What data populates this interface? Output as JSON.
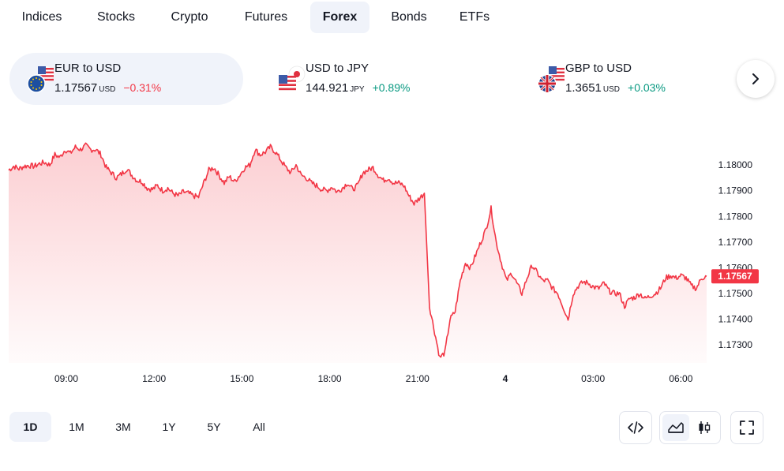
{
  "tabs": [
    {
      "label": "Indices",
      "active": false
    },
    {
      "label": "Stocks",
      "active": false
    },
    {
      "label": "Crypto",
      "active": false
    },
    {
      "label": "Futures",
      "active": false
    },
    {
      "label": "Forex",
      "active": true
    },
    {
      "label": "Bonds",
      "active": false
    },
    {
      "label": "ETFs",
      "active": false
    }
  ],
  "pairs": [
    {
      "name": "EUR to USD",
      "price": "1.17567",
      "unit": "USD",
      "change": "−0.31%",
      "direction": "down",
      "active": true,
      "icon": "eu-us-flags-icon"
    },
    {
      "name": "USD to JPY",
      "price": "144.921",
      "unit": "JPY",
      "change": "+0.89%",
      "direction": "up",
      "active": false,
      "icon": "us-jp-flags-icon"
    },
    {
      "name": "GBP to USD",
      "price": "1.3651",
      "unit": "USD",
      "change": "+0.03%",
      "direction": "up",
      "active": false,
      "icon": "gb-us-flags-icon"
    }
  ],
  "next_icon": "chevron-right-icon",
  "chart_data": {
    "type": "area",
    "series_color": "#f23645",
    "fill_color": "#fcd4d6",
    "y_ticks": [
      "1.18000",
      "1.17900",
      "1.17800",
      "1.17700",
      "1.17600",
      "1.17500",
      "1.17400",
      "1.17300"
    ],
    "ylim": [
      1.1723,
      1.1812
    ],
    "x_ticks": [
      {
        "label": "09:00",
        "bold": false
      },
      {
        "label": "12:00",
        "bold": false
      },
      {
        "label": "15:00",
        "bold": false
      },
      {
        "label": "18:00",
        "bold": false
      },
      {
        "label": "21:00",
        "bold": false
      },
      {
        "label": "4",
        "bold": true
      },
      {
        "label": "03:00",
        "bold": false
      },
      {
        "label": "06:00",
        "bold": false
      }
    ],
    "current_value": "1.17567",
    "points": [
      [
        0,
        1.1798
      ],
      [
        1,
        1.17995
      ],
      [
        2,
        1.17985
      ],
      [
        3,
        1.17995
      ],
      [
        4,
        1.17998
      ],
      [
        5,
        1.17995
      ],
      [
        6,
        1.18005
      ],
      [
        7,
        1.1801
      ],
      [
        8,
        1.18
      ],
      [
        9,
        1.1804
      ],
      [
        10,
        1.1803
      ],
      [
        11,
        1.1806
      ],
      [
        12,
        1.18045
      ],
      [
        13,
        1.1807
      ],
      [
        14,
        1.1806
      ],
      [
        15,
        1.18075
      ],
      [
        16,
        1.1806
      ],
      [
        17,
        1.1806
      ],
      [
        18,
        1.1804
      ],
      [
        19,
        1.1799
      ],
      [
        20,
        1.1797
      ],
      [
        21,
        1.1795
      ],
      [
        22,
        1.17965
      ],
      [
        23,
        1.17985
      ],
      [
        24,
        1.1796
      ],
      [
        25,
        1.1794
      ],
      [
        26,
        1.17935
      ],
      [
        27,
        1.1791
      ],
      [
        28,
        1.17905
      ],
      [
        29,
        1.1792
      ],
      [
        30,
        1.179
      ],
      [
        31,
        1.1791
      ],
      [
        32,
        1.1789
      ],
      [
        33,
        1.1788
      ],
      [
        34,
        1.17895
      ],
      [
        35,
        1.1789
      ],
      [
        36,
        1.1788
      ],
      [
        37,
        1.17875
      ],
      [
        38,
        1.1793
      ],
      [
        39,
        1.1798
      ],
      [
        40,
        1.1799
      ],
      [
        41,
        1.1796
      ],
      [
        42,
        1.1793
      ],
      [
        43,
        1.17955
      ],
      [
        44,
        1.17935
      ],
      [
        45,
        1.1796
      ],
      [
        46,
        1.1799
      ],
      [
        47,
        1.18
      ],
      [
        48,
        1.1806
      ],
      [
        49,
        1.1804
      ],
      [
        50,
        1.1805
      ],
      [
        51,
        1.1807
      ],
      [
        52,
        1.1805
      ],
      [
        53,
        1.1802
      ],
      [
        54,
        1.1799
      ],
      [
        55,
        1.1797
      ],
      [
        56,
        1.18
      ],
      [
        57,
        1.1796
      ],
      [
        58,
        1.1795
      ],
      [
        59,
        1.1793
      ],
      [
        60,
        1.1792
      ],
      [
        61,
        1.17905
      ],
      [
        62,
        1.179
      ],
      [
        63,
        1.17915
      ],
      [
        64,
        1.17895
      ],
      [
        65,
        1.1791
      ],
      [
        66,
        1.1793
      ],
      [
        67,
        1.17905
      ],
      [
        68,
        1.1792
      ],
      [
        69,
        1.1797
      ],
      [
        70,
        1.1798
      ],
      [
        71,
        1.1799
      ],
      [
        72,
        1.1796
      ],
      [
        73,
        1.1794
      ],
      [
        74,
        1.1795
      ],
      [
        75,
        1.1793
      ],
      [
        76,
        1.1793
      ],
      [
        77,
        1.1792
      ],
      [
        78,
        1.1788
      ],
      [
        79,
        1.1785
      ],
      [
        80,
        1.1787
      ],
      [
        81,
        1.1789
      ],
      [
        82,
        1.1745
      ],
      [
        83,
        1.1735
      ],
      [
        84,
        1.1725
      ],
      [
        85,
        1.1727
      ],
      [
        86,
        1.174
      ],
      [
        87,
        1.1743
      ],
      [
        88,
        1.1755
      ],
      [
        89,
        1.1762
      ],
      [
        90,
        1.176
      ],
      [
        91,
        1.1765
      ],
      [
        92,
        1.177
      ],
      [
        93,
        1.1775
      ],
      [
        94,
        1.1783
      ],
      [
        95,
        1.177
      ],
      [
        96,
        1.1762
      ],
      [
        97,
        1.1755
      ],
      [
        98,
        1.1758
      ],
      [
        99,
        1.1754
      ],
      [
        100,
        1.175
      ],
      [
        101,
        1.1756
      ],
      [
        102,
        1.1761
      ],
      [
        103,
        1.1758
      ],
      [
        104,
        1.1755
      ],
      [
        105,
        1.1755
      ],
      [
        106,
        1.1752
      ],
      [
        107,
        1.175
      ],
      [
        108,
        1.1745
      ],
      [
        109,
        1.174
      ],
      [
        110,
        1.175
      ],
      [
        111,
        1.1753
      ],
      [
        112,
        1.17545
      ],
      [
        113,
        1.1754
      ],
      [
        114,
        1.17525
      ],
      [
        115,
        1.1752
      ],
      [
        116,
        1.1754
      ],
      [
        117,
        1.1751
      ],
      [
        118,
        1.175
      ],
      [
        119,
        1.175
      ],
      [
        120,
        1.1745
      ],
      [
        121,
        1.1748
      ],
      [
        122,
        1.17485
      ],
      [
        123,
        1.175
      ],
      [
        124,
        1.1748
      ],
      [
        125,
        1.1749
      ],
      [
        126,
        1.175
      ],
      [
        127,
        1.1752
      ],
      [
        128,
        1.1756
      ],
      [
        129,
        1.1757
      ],
      [
        130,
        1.1756
      ],
      [
        131,
        1.1757
      ],
      [
        132,
        1.1756
      ],
      [
        133,
        1.1753
      ],
      [
        134,
        1.1752
      ],
      [
        135,
        1.1756
      ],
      [
        136,
        1.17567
      ]
    ]
  },
  "ranges": [
    {
      "label": "1D",
      "active": true
    },
    {
      "label": "1M",
      "active": false
    },
    {
      "label": "3M",
      "active": false
    },
    {
      "label": "1Y",
      "active": false
    },
    {
      "label": "5Y",
      "active": false
    },
    {
      "label": "All",
      "active": false
    }
  ],
  "tools": {
    "embed_icon": "code-embed-icon",
    "area_icon": "area-chart-icon",
    "candle_icon": "candlestick-chart-icon",
    "fullscreen_icon": "fullscreen-icon"
  }
}
